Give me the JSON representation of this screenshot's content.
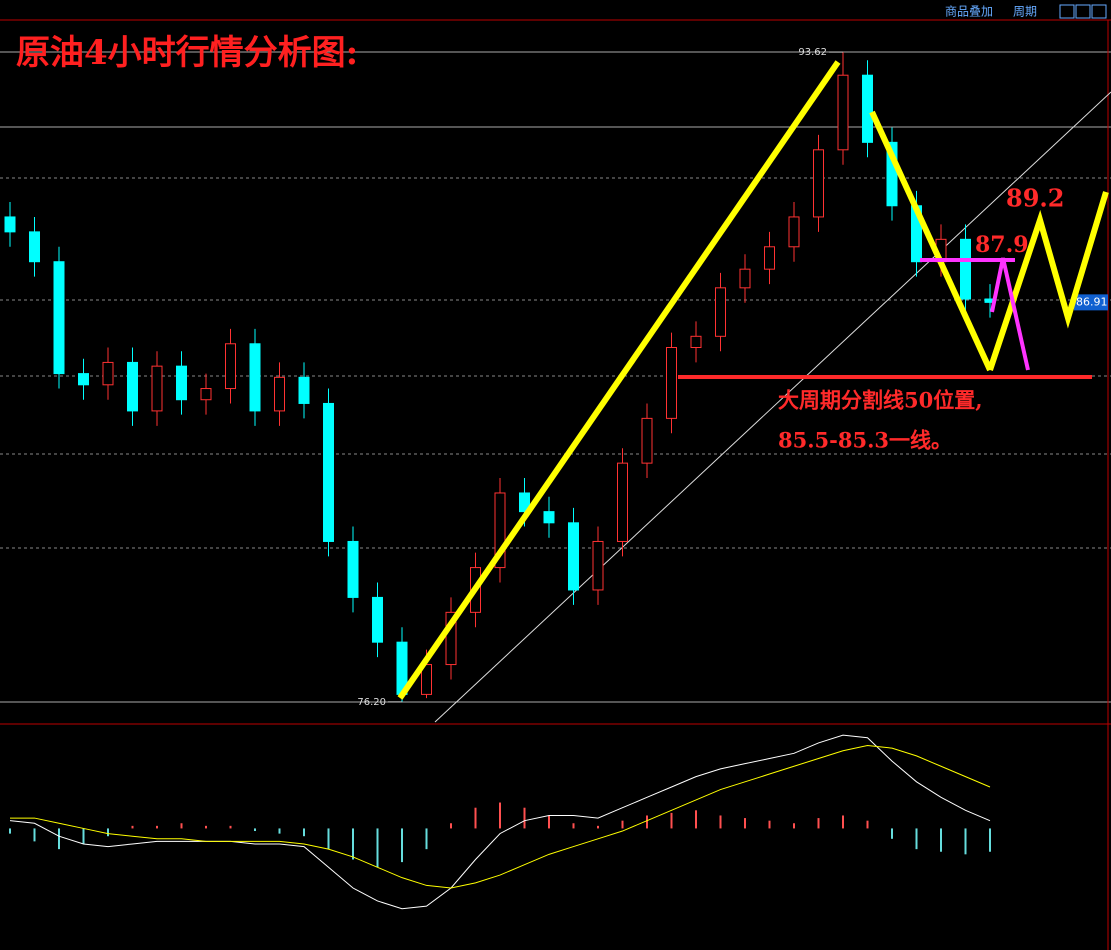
{
  "toolbar": {
    "overlay": "商品叠加",
    "period": "周期"
  },
  "chart_data": {
    "type": "candlestick",
    "title": "原油4小时行情分析图:",
    "up_color": "#ff3232",
    "down_color": "#00ffff",
    "ylim": [
      75.66,
      94.48
    ],
    "open": [
      89.2,
      88.8,
      88.0,
      85.0,
      84.7,
      85.3,
      84.0,
      85.2,
      84.3,
      84.6,
      85.8,
      84.0,
      84.9,
      84.2,
      80.5,
      79.0,
      77.8,
      76.4,
      77.2,
      78.6,
      79.8,
      81.8,
      81.3,
      81.0,
      79.2,
      80.5,
      82.6,
      83.8,
      85.7,
      86.0,
      87.3,
      87.8,
      88.4,
      89.2,
      91.0,
      93.0,
      91.2,
      89.5,
      88.0,
      88.6,
      87.0
    ],
    "high": [
      89.6,
      89.2,
      88.4,
      85.4,
      85.7,
      85.7,
      85.6,
      85.6,
      85.0,
      86.2,
      86.2,
      85.3,
      85.3,
      84.6,
      80.9,
      79.4,
      78.2,
      77.6,
      79.0,
      80.2,
      82.2,
      82.2,
      81.7,
      81.4,
      80.9,
      83.0,
      84.2,
      86.1,
      86.4,
      87.7,
      88.2,
      88.8,
      89.6,
      91.4,
      93.62,
      93.4,
      91.6,
      89.9,
      89.0,
      89.0,
      87.4
    ],
    "low": [
      88.4,
      87.6,
      84.6,
      84.3,
      84.3,
      83.6,
      83.6,
      83.9,
      83.9,
      84.2,
      83.6,
      83.6,
      83.8,
      80.1,
      78.6,
      77.4,
      76.2,
      76.3,
      76.8,
      78.2,
      79.4,
      80.9,
      80.6,
      78.8,
      78.8,
      80.1,
      82.2,
      83.4,
      85.3,
      85.6,
      86.9,
      87.4,
      88.0,
      88.8,
      90.6,
      90.8,
      89.1,
      87.6,
      87.6,
      86.6,
      86.5
    ],
    "close": [
      88.8,
      88.0,
      85.0,
      84.7,
      85.3,
      84.0,
      85.2,
      84.3,
      84.6,
      85.8,
      84.0,
      84.9,
      84.2,
      80.5,
      79.0,
      77.8,
      76.4,
      77.2,
      78.6,
      79.8,
      81.8,
      81.3,
      81.0,
      79.2,
      80.5,
      82.6,
      83.8,
      85.7,
      86.0,
      87.3,
      87.8,
      88.4,
      89.2,
      91.0,
      93.0,
      91.2,
      89.5,
      88.0,
      88.6,
      87.0,
      86.91
    ],
    "extremes": [
      {
        "value": 93.62,
        "label": "93.62"
      },
      {
        "value": 76.2,
        "label": "76.20"
      }
    ],
    "last_price": 86.91,
    "annotations": [
      "89.2",
      "87.9",
      "大周期分割线50位置,",
      "85.5-85.3一线。"
    ],
    "macd": {
      "ylim": [
        -4.5,
        3.8
      ],
      "hist": [
        -0.2,
        -0.5,
        -0.8,
        -0.6,
        -0.3,
        0.1,
        0.1,
        0.2,
        0.1,
        0.1,
        -0.1,
        -0.2,
        -0.3,
        -0.8,
        -1.2,
        -1.5,
        -1.3,
        -0.8,
        0.2,
        0.8,
        1.0,
        0.8,
        0.5,
        0.2,
        0.1,
        0.3,
        0.5,
        0.6,
        0.7,
        0.5,
        0.4,
        0.3,
        0.2,
        0.4,
        0.5,
        0.3,
        -0.4,
        -0.8,
        -0.9,
        -1.0,
        -0.9
      ],
      "dif": [
        0.3,
        0.2,
        -0.3,
        -0.6,
        -0.7,
        -0.6,
        -0.5,
        -0.5,
        -0.5,
        -0.5,
        -0.6,
        -0.6,
        -0.7,
        -1.5,
        -2.3,
        -2.8,
        -3.1,
        -3.0,
        -2.3,
        -1.2,
        -0.2,
        0.3,
        0.5,
        0.5,
        0.4,
        0.8,
        1.2,
        1.6,
        2.0,
        2.3,
        2.5,
        2.7,
        2.9,
        3.3,
        3.6,
        3.5,
        2.6,
        1.8,
        1.2,
        0.7,
        0.3
      ],
      "dea": [
        0.4,
        0.4,
        0.2,
        0,
        -0.2,
        -0.3,
        -0.4,
        -0.4,
        -0.5,
        -0.5,
        -0.5,
        -0.5,
        -0.6,
        -0.8,
        -1.1,
        -1.5,
        -1.9,
        -2.2,
        -2.3,
        -2.1,
        -1.8,
        -1.4,
        -1.0,
        -0.7,
        -0.4,
        -0.1,
        0.3,
        0.7,
        1.1,
        1.5,
        1.8,
        2.1,
        2.4,
        2.7,
        3.0,
        3.2,
        3.1,
        2.8,
        2.4,
        2.0,
        1.6
      ]
    }
  }
}
